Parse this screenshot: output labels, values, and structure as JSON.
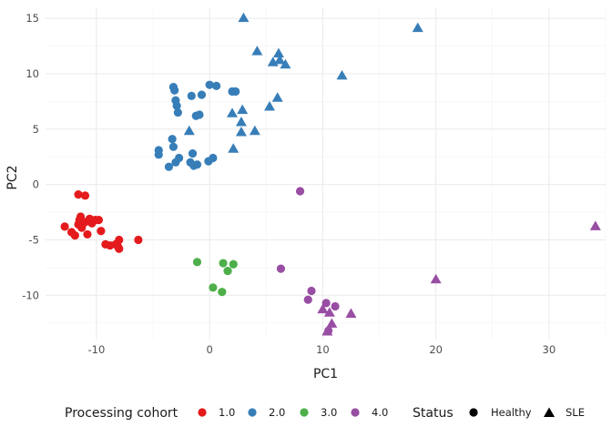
{
  "chart_data": {
    "type": "scatter",
    "xlabel": "PC1",
    "ylabel": "PC2",
    "xlim": [
      -14.5,
      35
    ],
    "ylim": [
      -14,
      16
    ],
    "x_ticks": [
      -10,
      0,
      10,
      20,
      30
    ],
    "y_ticks": [
      -10,
      -5,
      0,
      5,
      10,
      15
    ],
    "grid": true,
    "legend_placement": "bottom",
    "legends": {
      "color": {
        "title": "Processing cohort",
        "entries": [
          {
            "label": "1.0",
            "color": "#e41a1c"
          },
          {
            "label": "2.0",
            "color": "#377eb8"
          },
          {
            "label": "3.0",
            "color": "#4daf4a"
          },
          {
            "label": "4.0",
            "color": "#984ea3"
          }
        ]
      },
      "shape": {
        "title": "Status",
        "entries": [
          {
            "label": "Healthy",
            "shape": "circle"
          },
          {
            "label": "SLE",
            "shape": "triangle"
          }
        ]
      }
    },
    "points": [
      {
        "x": -12.8,
        "y": -3.8,
        "cohort": "1.0",
        "status": "Healthy"
      },
      {
        "x": -12.2,
        "y": -4.3,
        "cohort": "1.0",
        "status": "Healthy"
      },
      {
        "x": -11.9,
        "y": -4.6,
        "cohort": "1.0",
        "status": "Healthy"
      },
      {
        "x": -11.6,
        "y": -3.6,
        "cohort": "1.0",
        "status": "Healthy"
      },
      {
        "x": -11.5,
        "y": -3.2,
        "cohort": "1.0",
        "status": "Healthy"
      },
      {
        "x": -11.4,
        "y": -2.9,
        "cohort": "1.0",
        "status": "Healthy"
      },
      {
        "x": -11.3,
        "y": -3.9,
        "cohort": "1.0",
        "status": "Healthy"
      },
      {
        "x": -11.0,
        "y": -3.4,
        "cohort": "1.0",
        "status": "Healthy"
      },
      {
        "x": -10.8,
        "y": -4.5,
        "cohort": "1.0",
        "status": "Healthy"
      },
      {
        "x": -10.6,
        "y": -3.1,
        "cohort": "1.0",
        "status": "Healthy"
      },
      {
        "x": -10.4,
        "y": -3.5,
        "cohort": "1.0",
        "status": "Healthy"
      },
      {
        "x": -10.1,
        "y": -3.2,
        "cohort": "1.0",
        "status": "Healthy"
      },
      {
        "x": -9.8,
        "y": -3.2,
        "cohort": "1.0",
        "status": "Healthy"
      },
      {
        "x": -11.6,
        "y": -0.9,
        "cohort": "1.0",
        "status": "Healthy"
      },
      {
        "x": -11.0,
        "y": -1.0,
        "cohort": "1.0",
        "status": "Healthy"
      },
      {
        "x": -9.6,
        "y": -4.2,
        "cohort": "1.0",
        "status": "Healthy"
      },
      {
        "x": -9.2,
        "y": -5.4,
        "cohort": "1.0",
        "status": "Healthy"
      },
      {
        "x": -8.8,
        "y": -5.5,
        "cohort": "1.0",
        "status": "Healthy"
      },
      {
        "x": -8.3,
        "y": -5.4,
        "cohort": "1.0",
        "status": "Healthy"
      },
      {
        "x": -8.1,
        "y": -5.6,
        "cohort": "1.0",
        "status": "Healthy"
      },
      {
        "x": -8.0,
        "y": -5.0,
        "cohort": "1.0",
        "status": "Healthy"
      },
      {
        "x": -8.0,
        "y": -5.8,
        "cohort": "1.0",
        "status": "Healthy"
      },
      {
        "x": -6.3,
        "y": -5.0,
        "cohort": "1.0",
        "status": "Healthy"
      },
      {
        "x": -3.2,
        "y": 8.8,
        "cohort": "2.0",
        "status": "Healthy"
      },
      {
        "x": -3.1,
        "y": 8.5,
        "cohort": "2.0",
        "status": "Healthy"
      },
      {
        "x": -3.0,
        "y": 7.6,
        "cohort": "2.0",
        "status": "Healthy"
      },
      {
        "x": -2.9,
        "y": 7.1,
        "cohort": "2.0",
        "status": "Healthy"
      },
      {
        "x": -2.8,
        "y": 6.5,
        "cohort": "2.0",
        "status": "Healthy"
      },
      {
        "x": -1.6,
        "y": 8.0,
        "cohort": "2.0",
        "status": "Healthy"
      },
      {
        "x": -1.2,
        "y": 6.2,
        "cohort": "2.0",
        "status": "Healthy"
      },
      {
        "x": -0.9,
        "y": 6.3,
        "cohort": "2.0",
        "status": "Healthy"
      },
      {
        "x": -0.7,
        "y": 8.1,
        "cohort": "2.0",
        "status": "Healthy"
      },
      {
        "x": 0.0,
        "y": 9.0,
        "cohort": "2.0",
        "status": "Healthy"
      },
      {
        "x": 0.6,
        "y": 8.9,
        "cohort": "2.0",
        "status": "Healthy"
      },
      {
        "x": 2.0,
        "y": 8.4,
        "cohort": "2.0",
        "status": "Healthy"
      },
      {
        "x": 2.3,
        "y": 8.4,
        "cohort": "2.0",
        "status": "Healthy"
      },
      {
        "x": -4.5,
        "y": 3.1,
        "cohort": "2.0",
        "status": "Healthy"
      },
      {
        "x": -4.5,
        "y": 2.7,
        "cohort": "2.0",
        "status": "Healthy"
      },
      {
        "x": -3.3,
        "y": 4.1,
        "cohort": "2.0",
        "status": "Healthy"
      },
      {
        "x": -3.2,
        "y": 3.4,
        "cohort": "2.0",
        "status": "Healthy"
      },
      {
        "x": -3.6,
        "y": 1.6,
        "cohort": "2.0",
        "status": "Healthy"
      },
      {
        "x": -3.0,
        "y": 2.0,
        "cohort": "2.0",
        "status": "Healthy"
      },
      {
        "x": -2.7,
        "y": 2.4,
        "cohort": "2.0",
        "status": "Healthy"
      },
      {
        "x": -1.7,
        "y": 2.0,
        "cohort": "2.0",
        "status": "Healthy"
      },
      {
        "x": -1.5,
        "y": 2.8,
        "cohort": "2.0",
        "status": "Healthy"
      },
      {
        "x": -1.4,
        "y": 1.7,
        "cohort": "2.0",
        "status": "Healthy"
      },
      {
        "x": -1.1,
        "y": 1.8,
        "cohort": "2.0",
        "status": "Healthy"
      },
      {
        "x": -0.1,
        "y": 2.1,
        "cohort": "2.0",
        "status": "Healthy"
      },
      {
        "x": 0.3,
        "y": 2.4,
        "cohort": "2.0",
        "status": "Healthy"
      },
      {
        "x": 3.0,
        "y": 15.0,
        "cohort": "2.0",
        "status": "SLE"
      },
      {
        "x": 4.2,
        "y": 12.0,
        "cohort": "2.0",
        "status": "SLE"
      },
      {
        "x": 5.6,
        "y": 11.0,
        "cohort": "2.0",
        "status": "SLE"
      },
      {
        "x": 6.1,
        "y": 11.8,
        "cohort": "2.0",
        "status": "SLE"
      },
      {
        "x": 6.2,
        "y": 11.2,
        "cohort": "2.0",
        "status": "SLE"
      },
      {
        "x": 6.7,
        "y": 10.8,
        "cohort": "2.0",
        "status": "SLE"
      },
      {
        "x": 11.7,
        "y": 9.8,
        "cohort": "2.0",
        "status": "SLE"
      },
      {
        "x": 18.4,
        "y": 14.1,
        "cohort": "2.0",
        "status": "SLE"
      },
      {
        "x": 2.0,
        "y": 6.4,
        "cohort": "2.0",
        "status": "SLE"
      },
      {
        "x": 2.9,
        "y": 6.7,
        "cohort": "2.0",
        "status": "SLE"
      },
      {
        "x": 6.0,
        "y": 7.8,
        "cohort": "2.0",
        "status": "SLE"
      },
      {
        "x": 5.3,
        "y": 7.0,
        "cohort": "2.0",
        "status": "SLE"
      },
      {
        "x": 2.8,
        "y": 5.6,
        "cohort": "2.0",
        "status": "SLE"
      },
      {
        "x": -1.8,
        "y": 4.8,
        "cohort": "2.0",
        "status": "SLE"
      },
      {
        "x": 2.8,
        "y": 4.7,
        "cohort": "2.0",
        "status": "SLE"
      },
      {
        "x": 4.0,
        "y": 4.8,
        "cohort": "2.0",
        "status": "SLE"
      },
      {
        "x": 2.1,
        "y": 3.2,
        "cohort": "2.0",
        "status": "SLE"
      },
      {
        "x": -1.1,
        "y": -7.0,
        "cohort": "3.0",
        "status": "Healthy"
      },
      {
        "x": 1.2,
        "y": -7.1,
        "cohort": "3.0",
        "status": "Healthy"
      },
      {
        "x": 2.1,
        "y": -7.2,
        "cohort": "3.0",
        "status": "Healthy"
      },
      {
        "x": 1.6,
        "y": -7.8,
        "cohort": "3.0",
        "status": "Healthy"
      },
      {
        "x": 0.3,
        "y": -9.3,
        "cohort": "3.0",
        "status": "Healthy"
      },
      {
        "x": 1.1,
        "y": -9.7,
        "cohort": "3.0",
        "status": "Healthy"
      },
      {
        "x": 8.0,
        "y": -0.6,
        "cohort": "4.0",
        "status": "Healthy"
      },
      {
        "x": 6.3,
        "y": -7.6,
        "cohort": "4.0",
        "status": "Healthy"
      },
      {
        "x": 9.0,
        "y": -9.6,
        "cohort": "4.0",
        "status": "Healthy"
      },
      {
        "x": 8.7,
        "y": -10.4,
        "cohort": "4.0",
        "status": "Healthy"
      },
      {
        "x": 10.3,
        "y": -10.7,
        "cohort": "4.0",
        "status": "Healthy"
      },
      {
        "x": 11.1,
        "y": -11.0,
        "cohort": "4.0",
        "status": "Healthy"
      },
      {
        "x": 10.5,
        "y": -13.2,
        "cohort": "4.0",
        "status": "Healthy"
      },
      {
        "x": 34.1,
        "y": -3.8,
        "cohort": "4.0",
        "status": "SLE"
      },
      {
        "x": 20.0,
        "y": -8.6,
        "cohort": "4.0",
        "status": "SLE"
      },
      {
        "x": 10.0,
        "y": -11.3,
        "cohort": "4.0",
        "status": "SLE"
      },
      {
        "x": 10.6,
        "y": -11.6,
        "cohort": "4.0",
        "status": "SLE"
      },
      {
        "x": 12.5,
        "y": -11.7,
        "cohort": "4.0",
        "status": "SLE"
      },
      {
        "x": 10.8,
        "y": -12.6,
        "cohort": "4.0",
        "status": "SLE"
      },
      {
        "x": 10.4,
        "y": -13.3,
        "cohort": "4.0",
        "status": "SLE"
      }
    ]
  }
}
